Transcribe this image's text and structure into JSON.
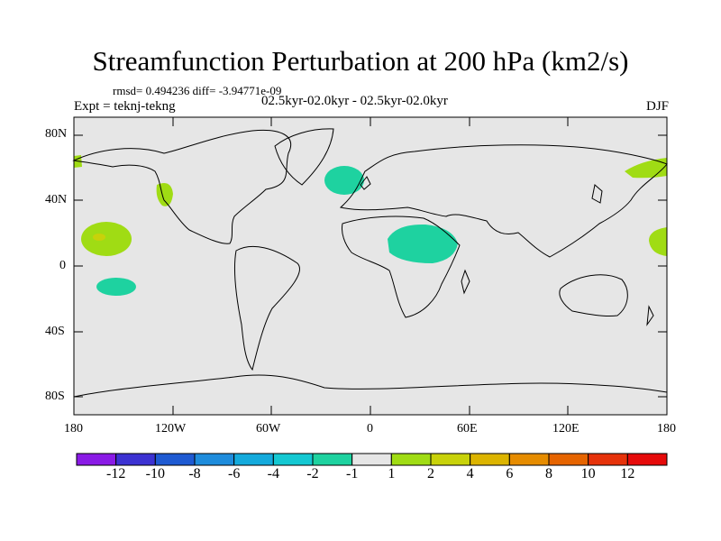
{
  "title": "Streamfunction Perturbation at 200 hPa (km2/s)",
  "stats": "rmsd= 0.494236 diff= -3.94771e-09",
  "experiment": "Expt = teknj-tekng",
  "period": "02.5kyr-02.0kyr - 02.5kyr-02.0kyr",
  "season": "DJF",
  "lat_labels": [
    "80N",
    "40N",
    "0",
    "40S",
    "80S"
  ],
  "lon_labels": [
    "180",
    "120W",
    "60W",
    "0",
    "60E",
    "120E",
    "180"
  ],
  "colorbar": {
    "labels": [
      "-12",
      "-10",
      "-8",
      "-6",
      "-4",
      "-2",
      "-1",
      "1",
      "2",
      "4",
      "6",
      "8",
      "10",
      "12"
    ],
    "colors": [
      "#8a1ae6",
      "#3c32d2",
      "#1e5ad2",
      "#1e8cdc",
      "#14aadc",
      "#14c8d2",
      "#1ed2a0",
      "#e6e6e6",
      "#a0dc14",
      "#c8d20a",
      "#dcb400",
      "#e68c00",
      "#e66400",
      "#e6320a",
      "#e60a0a"
    ]
  },
  "colors": {
    "background": "#e6e6e6",
    "negative_anomaly": "#1ed2a0",
    "positive_anomaly": "#a0dc14",
    "peak_anomaly": "#c8d20a"
  }
}
